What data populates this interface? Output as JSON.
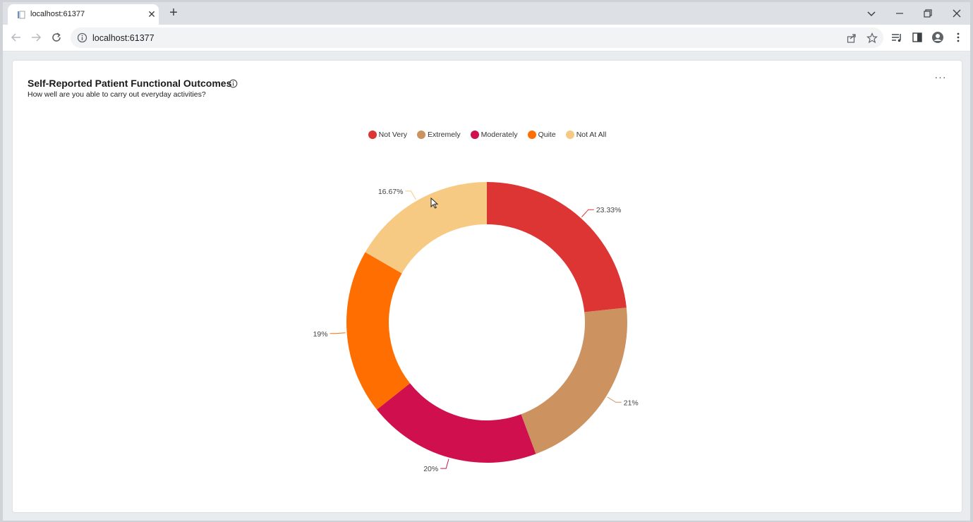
{
  "browser": {
    "tab": {
      "title": "localhost:61377"
    },
    "address_bar": {
      "url": "localhost:61377"
    }
  },
  "card": {
    "title": "Self-Reported Patient Functional Outcomes",
    "subtitle": "How well are you able to carry out everyday activities?",
    "more_label": "···"
  },
  "chart_data": {
    "type": "pie",
    "donut": true,
    "title": "Self-Reported Patient Functional Outcomes",
    "subtitle": "How well are you able to carry out everyday activities?",
    "legend_position": "top-center",
    "series": [
      {
        "name": "Not Very",
        "value": 23.33,
        "label": "23.33%",
        "color": "#dd3434"
      },
      {
        "name": "Extremely",
        "value": 21,
        "label": "21%",
        "color": "#cc9260"
      },
      {
        "name": "Moderately",
        "value": 20,
        "label": "20%",
        "color": "#cf0f4e"
      },
      {
        "name": "Quite",
        "value": 19,
        "label": "19%",
        "color": "#fe6e00"
      },
      {
        "name": "Not At All",
        "value": 16.67,
        "label": "16.67%",
        "color": "#f7ca83"
      }
    ]
  }
}
